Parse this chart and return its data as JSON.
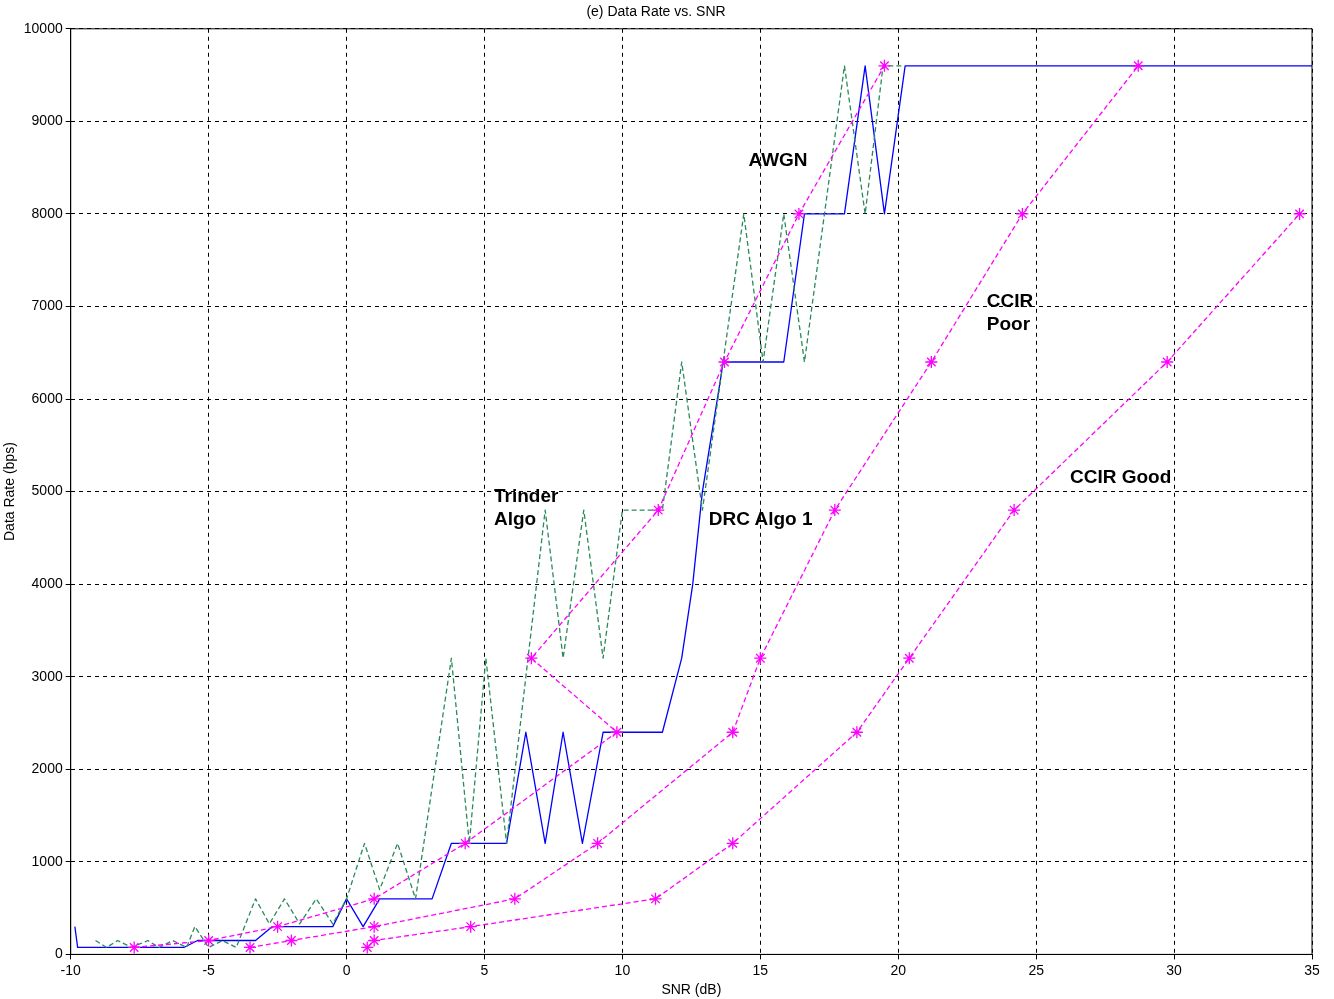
{
  "chart_data": {
    "type": "line",
    "title": "(e) Data Rate vs. SNR",
    "xlabel": "SNR (dB)",
    "ylabel": "Data Rate (bps)",
    "xlim": [
      -10,
      35
    ],
    "xticks": [
      -10,
      -5,
      0,
      5,
      10,
      15,
      20,
      25,
      30,
      35
    ],
    "ylim": [
      0,
      10000
    ],
    "yticks": [
      0,
      1000,
      2000,
      3000,
      4000,
      5000,
      6000,
      7000,
      8000,
      9000,
      10000
    ],
    "grid": true,
    "legend": false,
    "series": [
      {
        "type": "line",
        "color": "#ff00ff",
        "line_style": "dashed",
        "marker": "cross",
        "x": [
          -7.7,
          -5,
          -2.5,
          1,
          4.3,
          9.8,
          6.7,
          11.3,
          13.7,
          16.4,
          19.5
        ],
        "values": [
          75,
          150,
          300,
          600,
          1200,
          2400,
          3200,
          4800,
          6400,
          8000,
          9600
        ]
      },
      {
        "type": "line",
        "color": "#ff00ff",
        "line_style": "dashed",
        "marker": "cross",
        "x": [
          -3.5,
          -2,
          1,
          6.1,
          9.1,
          14,
          15,
          17.7,
          21.2,
          24.5,
          28.7
        ],
        "values": [
          75,
          150,
          300,
          600,
          1200,
          2400,
          3200,
          4800,
          6400,
          8000,
          9600
        ]
      },
      {
        "type": "line",
        "color": "#ff00ff",
        "line_style": "dashed",
        "marker": "cross",
        "x": [
          0.75,
          1,
          4.5,
          11.2,
          14,
          18.5,
          20.4,
          24.2,
          29.75,
          34.55
        ],
        "values": [
          75,
          150,
          300,
          600,
          1200,
          2400,
          3200,
          4800,
          6400,
          8000
        ]
      },
      {
        "type": "line",
        "color": "#2a8a5a",
        "line_style": "dashed",
        "marker": "none",
        "x": [
          -9.1,
          -8.7,
          -8.3,
          -7.8,
          -7.2,
          -6.8,
          -6.3,
          -5.8,
          -5.5,
          -5,
          -4.5,
          -4,
          -3.3,
          -2.8,
          -2.25,
          -1.7,
          -1.1,
          -0.5,
          0,
          0.65,
          1.2,
          1.85,
          2.5,
          3.8,
          4.45,
          5.05,
          5.8,
          7.2,
          7.85,
          8.6,
          9.3,
          10,
          11.45,
          12.15,
          12.9,
          14.4,
          15.1,
          15.85,
          16.6,
          18.05,
          18.8,
          19.45,
          20.2
        ],
        "values": [
          150,
          75,
          150,
          75,
          150,
          75,
          150,
          75,
          300,
          75,
          150,
          75,
          600,
          330,
          600,
          330,
          600,
          330,
          600,
          1200,
          700,
          1200,
          600,
          3200,
          1200,
          3200,
          1200,
          4800,
          3200,
          4800,
          3200,
          4800,
          4800,
          6400,
          4800,
          8000,
          6400,
          8000,
          6400,
          9600,
          8000,
          9600,
          9600
        ]
      },
      {
        "type": "line",
        "color": "#0000ff",
        "line_style": "solid",
        "marker": "none",
        "x": [
          -9.85,
          -9.75,
          -5.9,
          -5.4,
          -3.3,
          -2.7,
          -0.5,
          0,
          0.6,
          1.2,
          3.1,
          3.8,
          5.8,
          6.5,
          7.2,
          7.85,
          8.55,
          9.3,
          11.45,
          12.15,
          12.55,
          12.9,
          13.55,
          13.65,
          15.85,
          16.6,
          18.05,
          18.8,
          19.5,
          20.25,
          35
        ],
        "values": [
          300,
          75,
          75,
          150,
          150,
          300,
          300,
          600,
          300,
          600,
          600,
          1200,
          1200,
          2400,
          1200,
          2400,
          1200,
          2400,
          2400,
          3200,
          4000,
          5000,
          6200,
          6400,
          6400,
          8000,
          8000,
          9600,
          8000,
          9600,
          9600
        ]
      }
    ],
    "annotations": [
      "AWGN",
      "CCIR\nPoor",
      "Trinder\nAlgo",
      "DRC Algo 1",
      "CCIR Good"
    ]
  }
}
